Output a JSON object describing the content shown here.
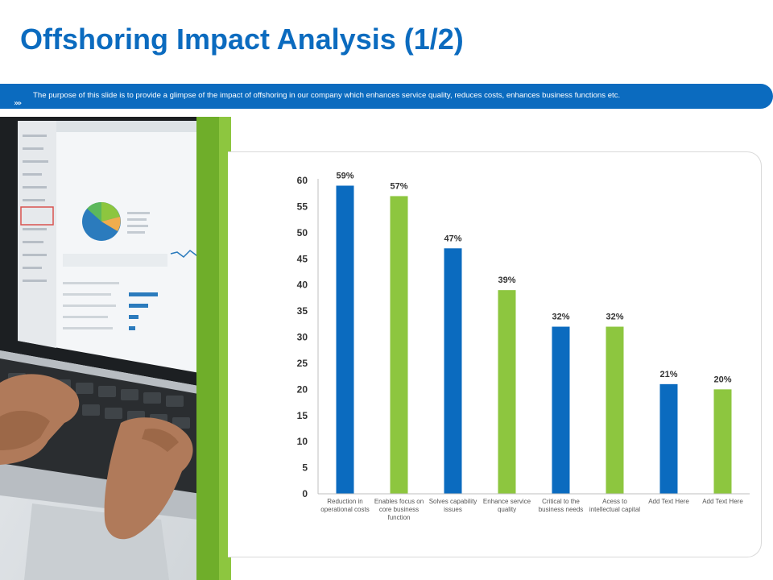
{
  "slide": {
    "title": "Offshoring Impact Analysis (1/2)",
    "description": "The purpose of this slide is to provide a glimpse of the impact of offshoring in our company which enhances service quality, reduces costs, enhances business functions etc.",
    "chevron_glyph": "»»"
  },
  "colors": {
    "brand_blue": "#0b6bbf",
    "accent_green": "#8dc63f"
  },
  "chart_data": {
    "type": "bar",
    "title": "",
    "xlabel": "",
    "ylabel": "",
    "ylim": [
      0,
      60
    ],
    "yticks": [
      0,
      5,
      10,
      15,
      20,
      25,
      30,
      35,
      40,
      45,
      50,
      55,
      60
    ],
    "grid": false,
    "legend": "none",
    "categories": [
      [
        "Reduction in",
        "operational costs"
      ],
      [
        "Enables focus on",
        "core business",
        "function"
      ],
      [
        "Solves capability",
        "issues"
      ],
      [
        "Enhance service",
        "quality"
      ],
      [
        "Critical to the",
        "business needs"
      ],
      [
        "Acess to",
        "intellectual capital"
      ],
      [
        "Add Text Here"
      ],
      [
        "Add Text Here"
      ]
    ],
    "values": [
      59,
      57,
      47,
      39,
      32,
      32,
      21,
      20
    ],
    "data_labels": [
      "59%",
      "57%",
      "47%",
      "39%",
      "32%",
      "32%",
      "21%",
      "20%"
    ],
    "bar_colors": [
      "#0b6bbf",
      "#8dc63f",
      "#0b6bbf",
      "#8dc63f",
      "#0b6bbf",
      "#8dc63f",
      "#0b6bbf",
      "#8dc63f"
    ]
  }
}
